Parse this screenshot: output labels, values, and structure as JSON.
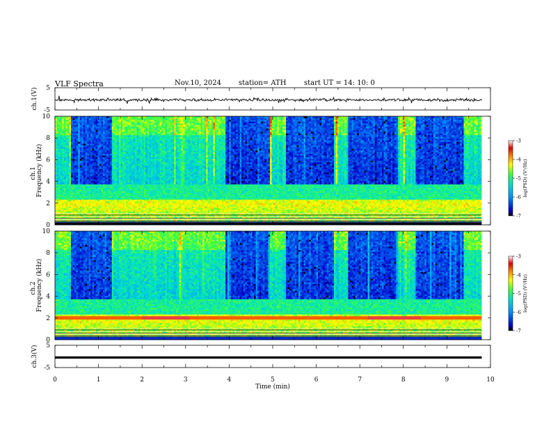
{
  "header": {
    "title": "VLF  Spectra",
    "date": "Nov.10, 2024",
    "station": "station= ATH",
    "start_ut": "start  UT  =   14: 10: 0"
  },
  "chart_data": [
    {
      "type": "line",
      "panel": "ch1-waveform",
      "ylabel": "ch.1(V)",
      "yticks": [
        "5",
        "-5"
      ],
      "ylim": [
        -5,
        5
      ],
      "xlim": [
        0,
        10
      ],
      "trace_range": [
        0,
        9.8
      ],
      "trace_level": "noisy signal near -1 V"
    },
    {
      "type": "heatmap",
      "panel": "ch1-spectrogram",
      "ylabel": [
        "ch.1",
        "Frequency  (kHz)"
      ],
      "yticks": [
        "0",
        "2",
        "4",
        "6",
        "8",
        "10"
      ],
      "ylim": [
        0,
        10
      ],
      "xlim": [
        0,
        10
      ],
      "quiet_intervals_min": [
        [
          0.35,
          1.3
        ],
        [
          3.9,
          4.95
        ],
        [
          5.3,
          6.4
        ],
        [
          6.75,
          7.9
        ],
        [
          8.3,
          9.4
        ]
      ],
      "colorbar": {
        "label": "log(PSD) (V²/Hz)",
        "ticks": [
          "-3",
          "-4",
          "-5",
          "-6",
          "-7"
        ],
        "range": [
          -7,
          -3
        ],
        "colors": [
          "#000000",
          "#0000c8",
          "#0090ff",
          "#00e0c8",
          "#40ff40",
          "#ffff00",
          "#ff8000",
          "#e00000",
          "#ffffff"
        ]
      }
    },
    {
      "type": "heatmap",
      "panel": "ch2-spectrogram",
      "ylabel": [
        "ch.2",
        "Frequency  (kHz)"
      ],
      "yticks": [
        "0",
        "2",
        "4",
        "6",
        "8",
        "10"
      ],
      "ylim": [
        0,
        10
      ],
      "xlim": [
        0,
        10
      ],
      "quiet_intervals_min": [
        [
          0.35,
          1.3
        ],
        [
          3.9,
          4.95
        ],
        [
          5.3,
          6.4
        ],
        [
          6.75,
          7.9
        ],
        [
          8.3,
          9.4
        ]
      ],
      "strong_band_khz": 2.0,
      "colorbar": {
        "label": "log(PSD) (V²/Hz)",
        "ticks": [
          "-3",
          "-4",
          "-5",
          "-6",
          "-7"
        ],
        "range": [
          -7,
          -3
        ]
      }
    },
    {
      "type": "line",
      "panel": "ch3-waveform",
      "ylabel": "ch.3(V)",
      "yticks": [
        "5",
        "-5"
      ],
      "ylim": [
        -5,
        5
      ],
      "xlim": [
        0,
        10
      ],
      "trace_range": [
        0,
        9.8
      ],
      "trace_level": "flat near -1 V"
    }
  ],
  "xaxis": {
    "label": "Time  (min)",
    "ticks": [
      "0",
      "1",
      "2",
      "3",
      "4",
      "5",
      "6",
      "7",
      "8",
      "9",
      "10"
    ]
  }
}
